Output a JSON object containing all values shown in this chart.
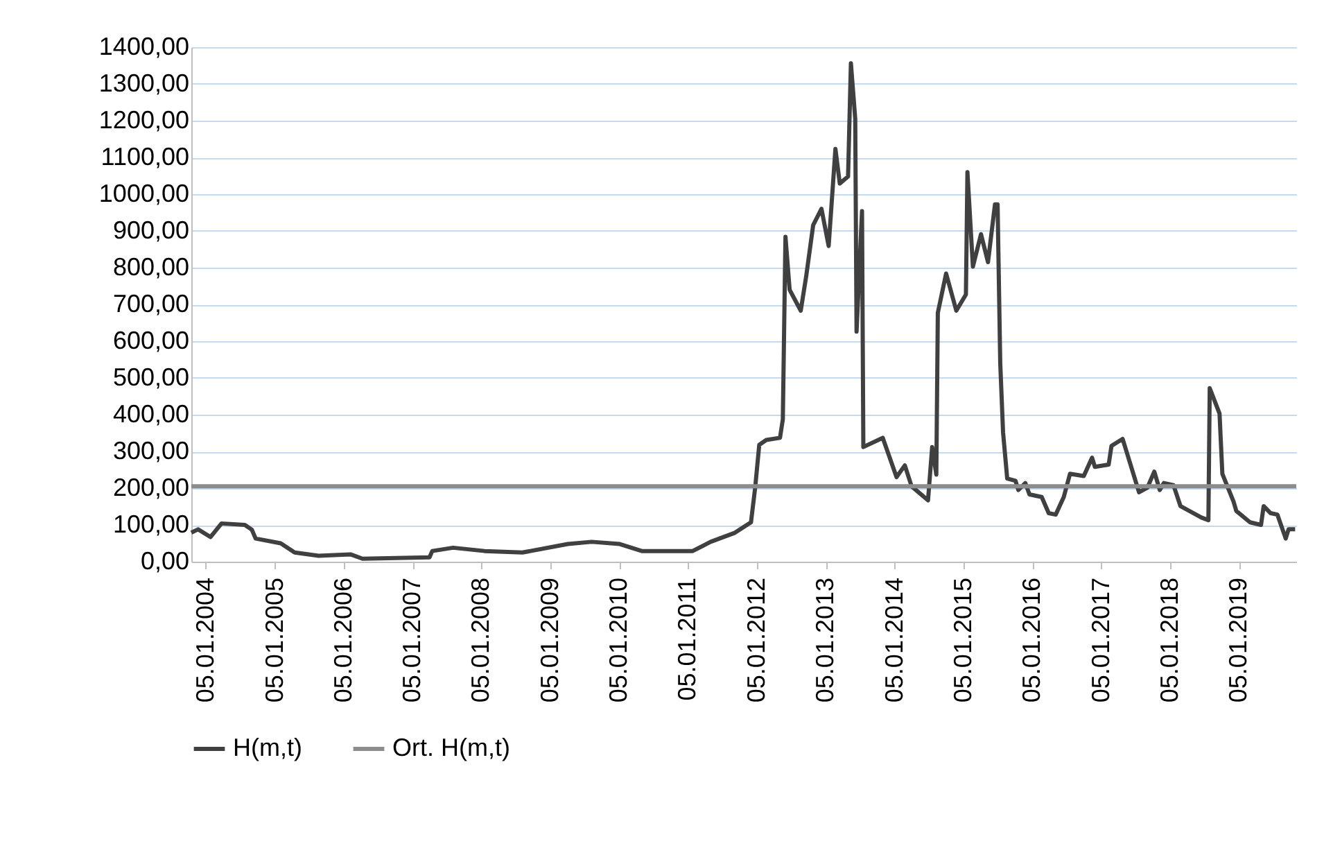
{
  "chart_data": {
    "type": "line",
    "xlim": [
      "2003-10-20",
      "2019-11-05"
    ],
    "ylim": [
      0,
      1400
    ],
    "xticks": [
      {
        "value": "2004-01-05",
        "label": "05.01.2004"
      },
      {
        "value": "2005-01-05",
        "label": "05.01.2005"
      },
      {
        "value": "2006-01-05",
        "label": "05.01.2006"
      },
      {
        "value": "2007-01-05",
        "label": "05.01.2007"
      },
      {
        "value": "2008-01-05",
        "label": "05.01.2008"
      },
      {
        "value": "2009-01-05",
        "label": "05.01.2009"
      },
      {
        "value": "2010-01-05",
        "label": "05.01.2010"
      },
      {
        "value": "2011-01-05",
        "label": "05.01.2011"
      },
      {
        "value": "2012-01-05",
        "label": "05.01.2012"
      },
      {
        "value": "2013-01-05",
        "label": "05.01.2013"
      },
      {
        "value": "2014-01-05",
        "label": "05.01.2014"
      },
      {
        "value": "2015-01-05",
        "label": "05.01.2015"
      },
      {
        "value": "2016-01-05",
        "label": "05.01.2016"
      },
      {
        "value": "2017-01-05",
        "label": "05.01.2017"
      },
      {
        "value": "2018-01-05",
        "label": "05.01.2018"
      },
      {
        "value": "2019-01-05",
        "label": "05.01.2019"
      }
    ],
    "yticks": [
      {
        "value": 0,
        "label": "0,00"
      },
      {
        "value": 100,
        "label": "100,00"
      },
      {
        "value": 200,
        "label": "200,00"
      },
      {
        "value": 300,
        "label": "300,00"
      },
      {
        "value": 400,
        "label": "400,00"
      },
      {
        "value": 500,
        "label": "500,00"
      },
      {
        "value": 600,
        "label": "600,00"
      },
      {
        "value": 700,
        "label": "700,00"
      },
      {
        "value": 800,
        "label": "800,00"
      },
      {
        "value": 900,
        "label": "900,00"
      },
      {
        "value": 1000,
        "label": "1000,00"
      },
      {
        "value": 1100,
        "label": "1100,00"
      },
      {
        "value": 1200,
        "label": "1200,00"
      },
      {
        "value": 1300,
        "label": "1300,00"
      },
      {
        "value": 1400,
        "label": "1400,00"
      }
    ],
    "grid": "y",
    "legend": "bottom",
    "series": [
      {
        "name": "H(m,t)",
        "color": "#404040",
        "x": [
          "2003-10-20",
          "2003-11-25",
          "2004-01-30",
          "2004-03-28",
          "2004-07-30",
          "2004-09-05",
          "2004-09-25",
          "2005-02-05",
          "2005-04-20",
          "2005-08-25",
          "2006-02-10",
          "2006-04-15",
          "2007-04-05",
          "2007-04-20",
          "2007-08-08",
          "2008-01-22",
          "2008-08-10",
          "2009-04-08",
          "2009-08-12",
          "2010-01-08",
          "2010-05-05",
          "2011-01-30",
          "2011-05-05",
          "2011-09-08",
          "2011-12-05",
          "2011-12-27",
          "2012-01-18",
          "2012-02-24",
          "2012-05-07",
          "2012-05-22",
          "2012-06-05",
          "2012-06-27",
          "2012-08-25",
          "2012-09-23",
          "2012-10-30",
          "2012-12-13",
          "2013-01-20",
          "2013-02-25",
          "2013-03-20",
          "2013-05-03",
          "2013-05-18",
          "2013-06-10",
          "2013-06-17",
          "2013-07-16",
          "2013-07-23",
          "2013-11-03",
          "2014-01-15",
          "2014-02-28",
          "2014-04-05",
          "2014-07-01",
          "2014-07-23",
          "2014-08-14",
          "2014-08-22",
          "2014-10-05",
          "2014-11-28",
          "2015-01-18",
          "2015-01-26",
          "2015-02-24",
          "2015-04-08",
          "2015-05-15",
          "2015-06-21",
          "2015-07-05",
          "2015-07-19",
          "2015-08-03",
          "2015-08-25",
          "2015-10-08",
          "2015-10-23",
          "2015-11-29",
          "2015-12-21",
          "2016-02-24",
          "2016-04-01",
          "2016-05-08",
          "2016-06-20",
          "2016-07-23",
          "2016-10-04",
          "2016-11-17",
          "2016-12-02",
          "2017-02-13",
          "2017-02-28",
          "2017-04-28",
          "2017-07-24",
          "2017-09-06",
          "2017-10-13",
          "2017-11-11",
          "2017-12-03",
          "2018-01-23",
          "2018-03-01",
          "2018-06-20",
          "2018-07-27",
          "2018-08-03",
          "2018-09-24",
          "2018-10-09",
          "2018-12-07",
          "2018-12-22",
          "2019-03-05",
          "2019-05-02",
          "2019-05-16",
          "2019-06-22",
          "2019-07-28",
          "2019-09-10",
          "2019-09-25",
          "2019-10-30"
        ],
        "values": [
          79,
          88,
          67,
          104,
          100,
          87,
          63,
          50,
          25,
          16,
          20,
          8,
          12,
          29,
          38,
          29,
          25,
          48,
          54,
          48,
          29,
          29,
          54,
          78,
          107,
          200,
          318,
          331,
          337,
          387,
          884,
          740,
          683,
          777,
          916,
          960,
          859,
          1123,
          1029,
          1048,
          1356,
          1205,
          626,
          954,
          312,
          337,
          230,
          262,
          205,
          167,
          312,
          237,
          677,
          784,
          683,
          727,
          1060,
          803,
          891,
          815,
          972,
          972,
          541,
          352,
          226,
          220,
          195,
          214,
          183,
          176,
          132,
          128,
          176,
          239,
          233,
          283,
          258,
          264,
          315,
          334,
          189,
          201,
          245,
          195,
          214,
          208,
          151,
          120,
          113,
          472,
          403,
          239,
          164,
          138,
          107,
          100,
          151,
          132,
          128,
          63,
          88,
          88
        ]
      },
      {
        "name": "Ort. H(m,t)",
        "color": "#8c8c8c",
        "x": [
          "2003-10-20",
          "2019-11-05"
        ],
        "values": [
          205,
          205
        ]
      }
    ]
  }
}
